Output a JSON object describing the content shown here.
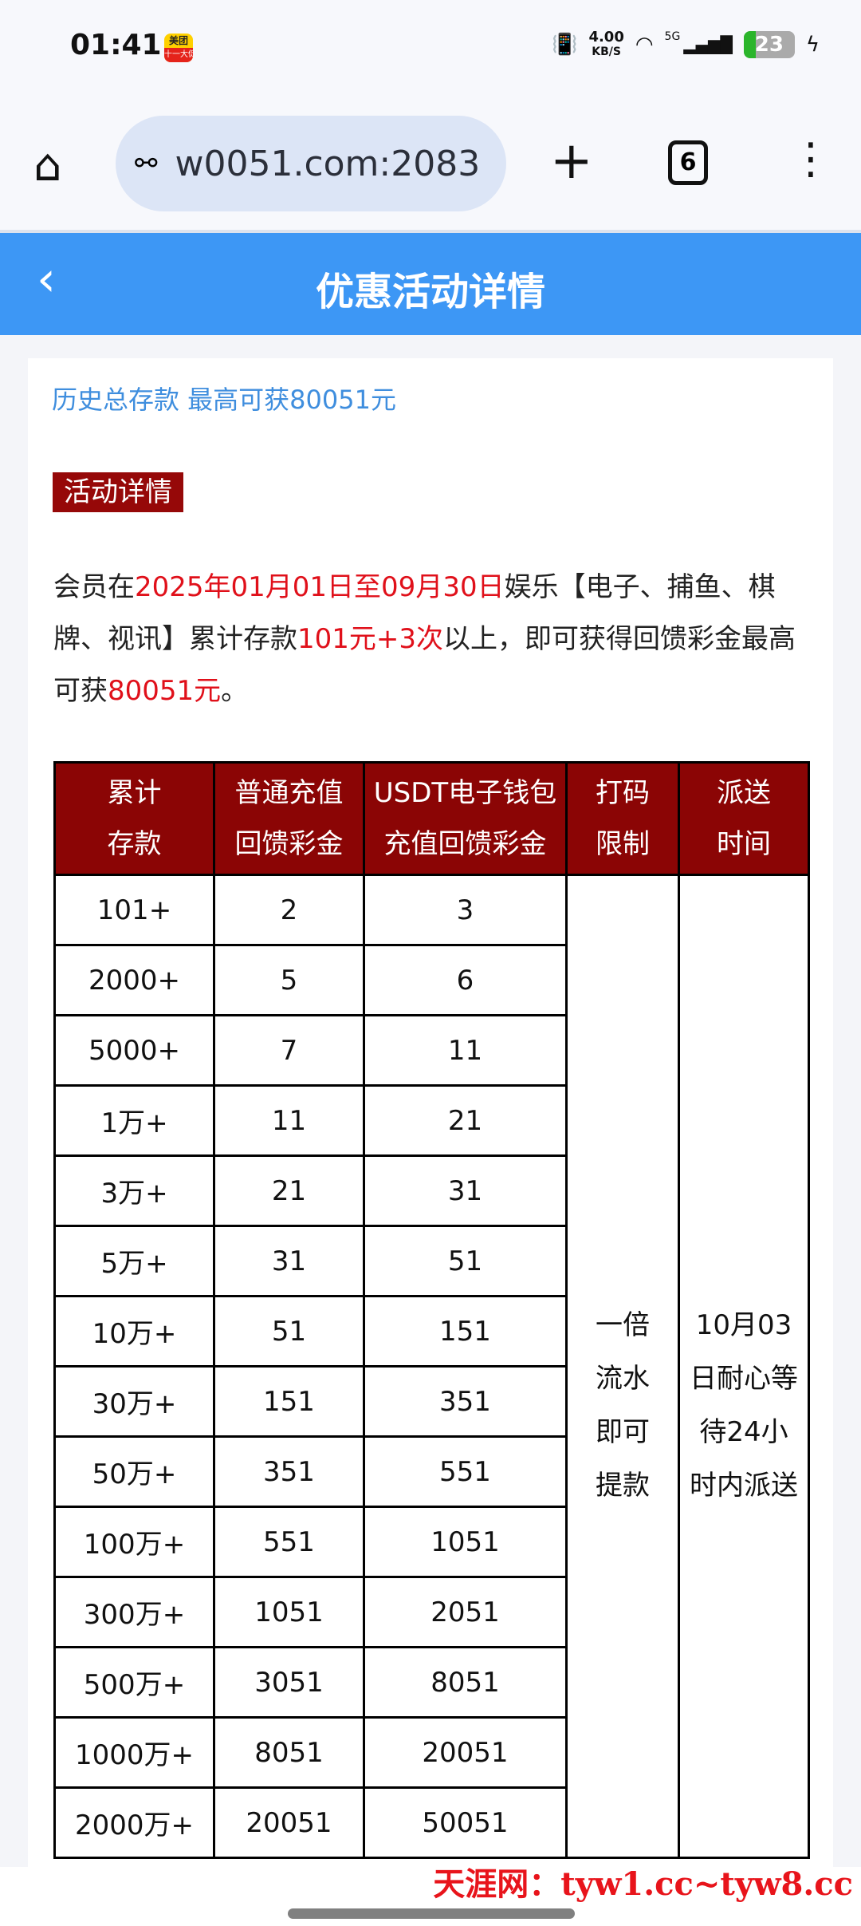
{
  "status_bar": {
    "time": "01:41",
    "app_icon": "meituan-icon",
    "app_icon_text": "美团",
    "app_icon_sub": "十一大促",
    "net_speed": "4.00",
    "net_unit": "KB/S",
    "network": "5G",
    "battery": "23",
    "battery_charging": true
  },
  "browser": {
    "url": "w0051.com:2083",
    "tab_count": "6"
  },
  "header": {
    "title": "优惠活动详情",
    "color": "#3d97f5"
  },
  "content": {
    "subtitle": "历史总存款 最高可获80051元",
    "tag": "活动详情",
    "para": {
      "p1": "会员在",
      "p2": "2025年01月01日至09月30日",
      "p3": "娱乐【电子、捕鱼、棋牌、视讯】累计存款",
      "p4": "101元+3次",
      "p5": "以上，即可获得回馈彩金最高可获",
      "p6": "80051元",
      "p7": "。"
    }
  },
  "table": {
    "headers": [
      "累计存款",
      "普通充值回馈彩金",
      "USDT电子钱包充值回馈彩金",
      "打码限制",
      "派送时间"
    ],
    "rows": [
      [
        "101+",
        "2",
        "3"
      ],
      [
        "2000+",
        "5",
        "6"
      ],
      [
        "5000+",
        "7",
        "11"
      ],
      [
        "1万+",
        "11",
        "21"
      ],
      [
        "3万+",
        "21",
        "31"
      ],
      [
        "5万+",
        "31",
        "51"
      ],
      [
        "10万+",
        "51",
        "151"
      ],
      [
        "30万+",
        "151",
        "351"
      ],
      [
        "50万+",
        "351",
        "551"
      ],
      [
        "100万+",
        "551",
        "1051"
      ],
      [
        "300万+",
        "1051",
        "2051"
      ],
      [
        "500万+",
        "3051",
        "8051"
      ],
      [
        "1000万+",
        "8051",
        "20051"
      ],
      [
        "2000万+",
        "20051",
        "50051"
      ]
    ],
    "wager": "一倍流水即可提款",
    "delivery": "10月03日耐心等待24小时内派送",
    "header_color": "#8b0505"
  },
  "watermark": "天涯网：tyw1.cc~tyw8.cc"
}
